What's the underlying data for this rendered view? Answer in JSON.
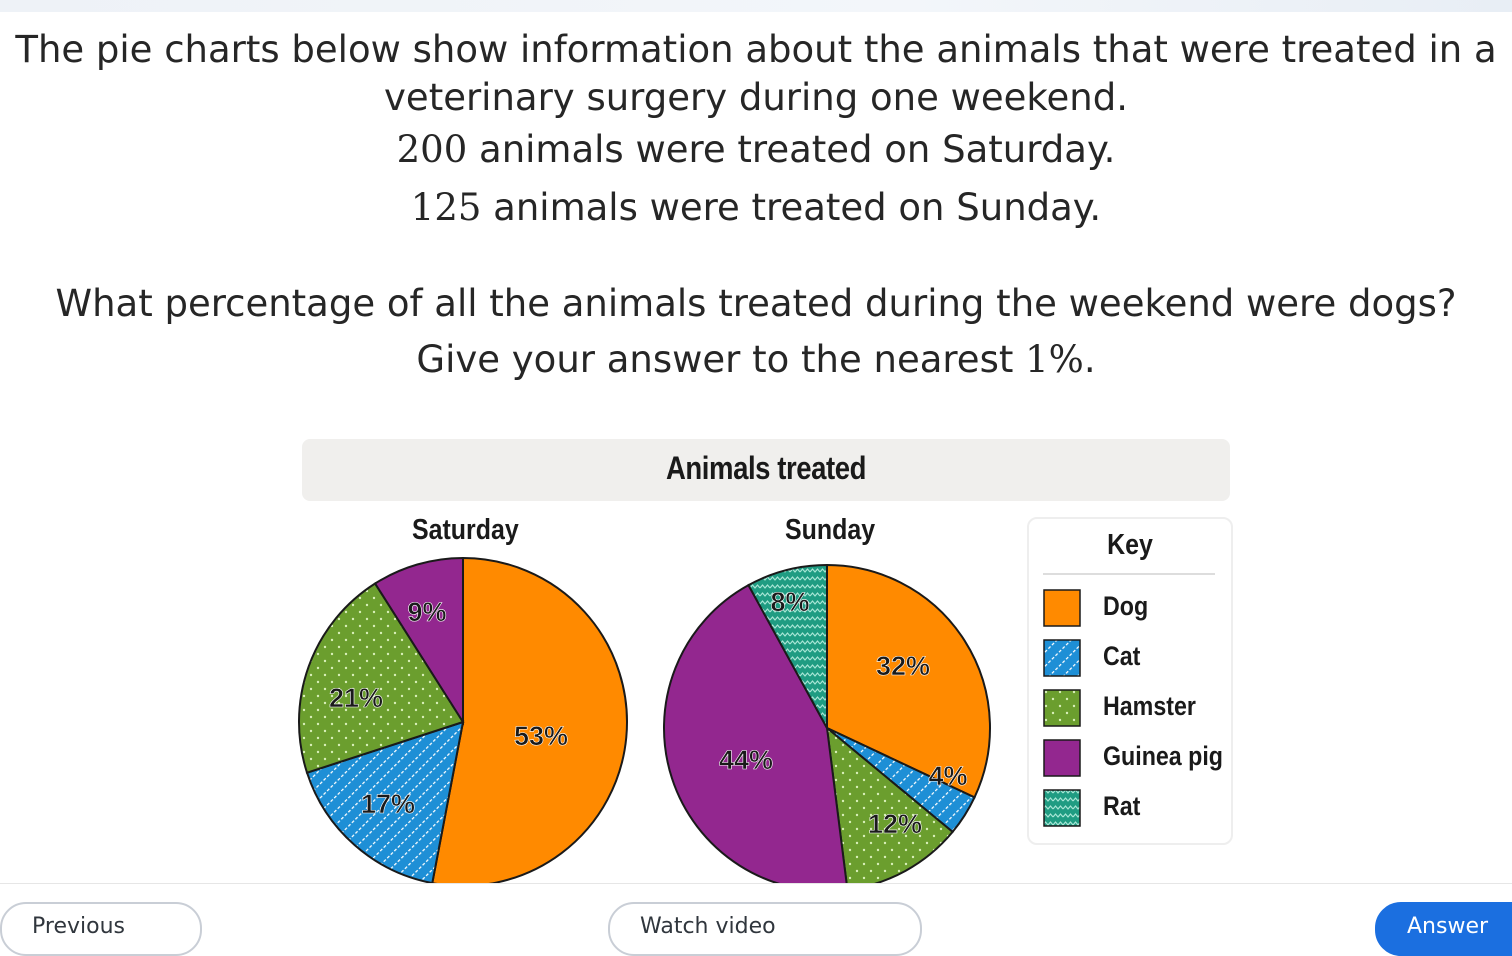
{
  "question": {
    "line1": "The pie charts below show information about the animals that were treated in a",
    "line2": "veterinary surgery during one weekend.",
    "line3_num": "200",
    "line3_text": " animals were treated on Saturday.",
    "line4_num": "125",
    "line4_text": " animals were treated on Sunday.",
    "line5": "What percentage of all the animals treated during the weekend were dogs?",
    "line6_text": "Give your answer to the nearest ",
    "line6_num": "1%",
    "line6_end": "."
  },
  "chart_data": [
    {
      "type": "pie",
      "title": "Saturday",
      "categories": [
        "Dog",
        "Cat",
        "Hamster",
        "Guinea pig"
      ],
      "values": [
        53,
        17,
        21,
        9
      ],
      "labels": [
        "53%",
        "17%",
        "21%",
        "9%"
      ]
    },
    {
      "type": "pie",
      "title": "Sunday",
      "categories": [
        "Dog",
        "Cat",
        "Hamster",
        "Guinea pig",
        "Rat"
      ],
      "values": [
        32,
        4,
        12,
        44,
        8
      ],
      "labels": [
        "32%",
        "4%",
        "12%",
        "44%",
        "8%"
      ]
    }
  ],
  "chart_header": "Animals treated",
  "key": {
    "title": "Key",
    "items": [
      {
        "label": "Dog",
        "color": "#ff8a00",
        "pattern": "solid"
      },
      {
        "label": "Cat",
        "color": "#1e8fd6",
        "pattern": "stripes"
      },
      {
        "label": "Hamster",
        "color": "#6b9e2e",
        "pattern": "dots"
      },
      {
        "label": "Guinea pig",
        "color": "#93278f",
        "pattern": "solid"
      },
      {
        "label": "Rat",
        "color": "#1f9c82",
        "pattern": "zigzag"
      }
    ]
  },
  "nav": {
    "previous": "Previous",
    "watch": "Watch video",
    "next": "Answer"
  }
}
